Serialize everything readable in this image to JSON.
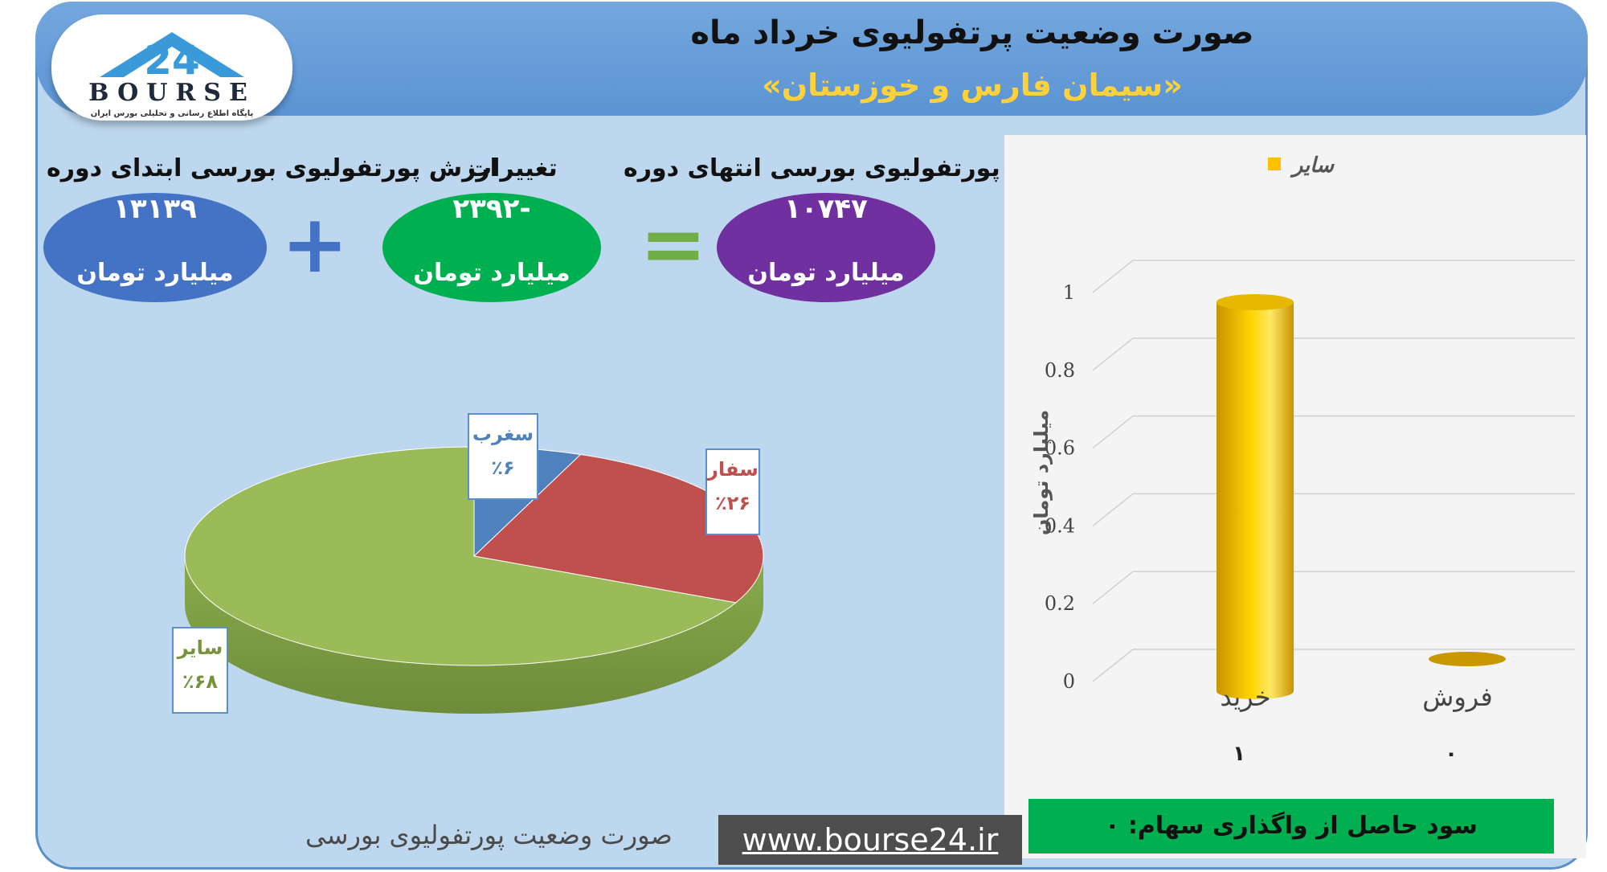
{
  "header": {
    "title": "صورت وضعیت پرتفولیوی خرداد ماه",
    "subtitle": "«سیمان فارس و خوزستان»"
  },
  "logo": {
    "text": "BOURSE",
    "subtext": "پایگاه اطلاع رسانی و تحلیلی بورس ایران"
  },
  "summary": {
    "start_label": "ارزش پورتفولیوی بورسی ابتدای دوره",
    "start_value": "۱۳۱۳۹",
    "start_unit": "میلیارد تومان",
    "change_label": "تغییرات",
    "change_value": "-۲۳۹۲",
    "change_unit": "میلیارد تومان",
    "end_label": "ارزش پورتفولیوی بورسی انتهای دوره",
    "end_value": "۱۰۷۴۷",
    "end_unit": "میلیارد تومان",
    "plus_sign": "+",
    "equals_sign": "=",
    "colors": {
      "start": "#4472c4",
      "change": "#00b050",
      "end": "#7030a0",
      "plus": "#4472c4",
      "equals": "#70ad47"
    }
  },
  "chart_data": [
    {
      "type": "pie",
      "slices": [
        {
          "name": "سایر",
          "label": "٪۶۸",
          "value": 68,
          "color": "#9bbb59"
        },
        {
          "name": "سغرب",
          "label": "٪۶",
          "value": 6,
          "color": "#4f81bd"
        },
        {
          "name": "سفار",
          "label": "٪۲۶",
          "value": 26,
          "color": "#c0504d"
        }
      ],
      "caption": "صورت وضعیت پورتفولیوی بورسی"
    },
    {
      "type": "bar",
      "categories": [
        "خرید",
        "فروش"
      ],
      "category_values": [
        "۱",
        "۰"
      ],
      "series": [
        {
          "name": "سایر",
          "values": [
            1,
            0
          ],
          "color": "#ffc000"
        }
      ],
      "ylabel": "میلیارد تومان",
      "ylim": [
        0,
        1
      ],
      "yticks": [
        "0",
        "0.2",
        "0.4",
        "0.6",
        "0.8",
        "1"
      ],
      "legend": "top"
    }
  ],
  "footer": {
    "caption": "صورت وضعیت پورتفولیوی بورسی",
    "website": "www.bourse24.ir",
    "profit": "سود حاصل از واگذاری سهام: ۰"
  }
}
